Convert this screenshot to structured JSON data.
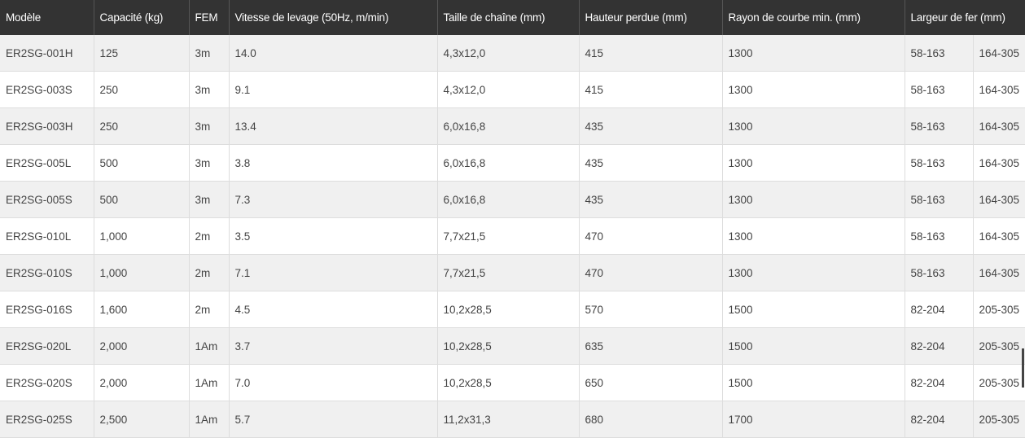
{
  "table": {
    "header": [
      "Modèle",
      "Capacité (kg)",
      "FEM",
      "Vitesse de levage (50Hz, m/min)",
      "Taille de chaîne (mm)",
      "Hauteur perdue (mm)",
      "Rayon de courbe min. (mm)",
      "Largeur de fer (mm)"
    ],
    "rows": [
      [
        "ER2SG-001H",
        "125",
        "3m",
        "14.0",
        "4,3x12,0",
        "415",
        "1300",
        "58-163",
        "164-305"
      ],
      [
        "ER2SG-003S",
        "250",
        "3m",
        "9.1",
        "4,3x12,0",
        "415",
        "1300",
        "58-163",
        "164-305"
      ],
      [
        "ER2SG-003H",
        "250",
        "3m",
        "13.4",
        "6,0x16,8",
        "435",
        "1300",
        "58-163",
        "164-305"
      ],
      [
        "ER2SG-005L",
        "500",
        "3m",
        "3.8",
        "6,0x16,8",
        "435",
        "1300",
        "58-163",
        "164-305"
      ],
      [
        "ER2SG-005S",
        "500",
        "3m",
        "7.3",
        "6,0x16,8",
        "435",
        "1300",
        "58-163",
        "164-305"
      ],
      [
        "ER2SG-010L",
        "1,000",
        "2m",
        "3.5",
        "7,7x21,5",
        "470",
        "1300",
        "58-163",
        "164-305"
      ],
      [
        "ER2SG-010S",
        "1,000",
        "2m",
        "7.1",
        "7,7x21,5",
        "470",
        "1300",
        "58-163",
        "164-305"
      ],
      [
        "ER2SG-016S",
        "1,600",
        "2m",
        "4.5",
        "10,2x28,5",
        "570",
        "1500",
        "82-204",
        "205-305"
      ],
      [
        "ER2SG-020L",
        "2,000",
        "1Am",
        "3.7",
        "10,2x28,5",
        "635",
        "1500",
        "82-204",
        "205-305"
      ],
      [
        "ER2SG-020S",
        "2,000",
        "1Am",
        "7.0",
        "10,2x28,5",
        "650",
        "1500",
        "82-204",
        "205-305"
      ],
      [
        "ER2SG-025S",
        "2,500",
        "1Am",
        "5.7",
        "11,2x31,3",
        "680",
        "1700",
        "82-204",
        "205-305"
      ]
    ]
  }
}
